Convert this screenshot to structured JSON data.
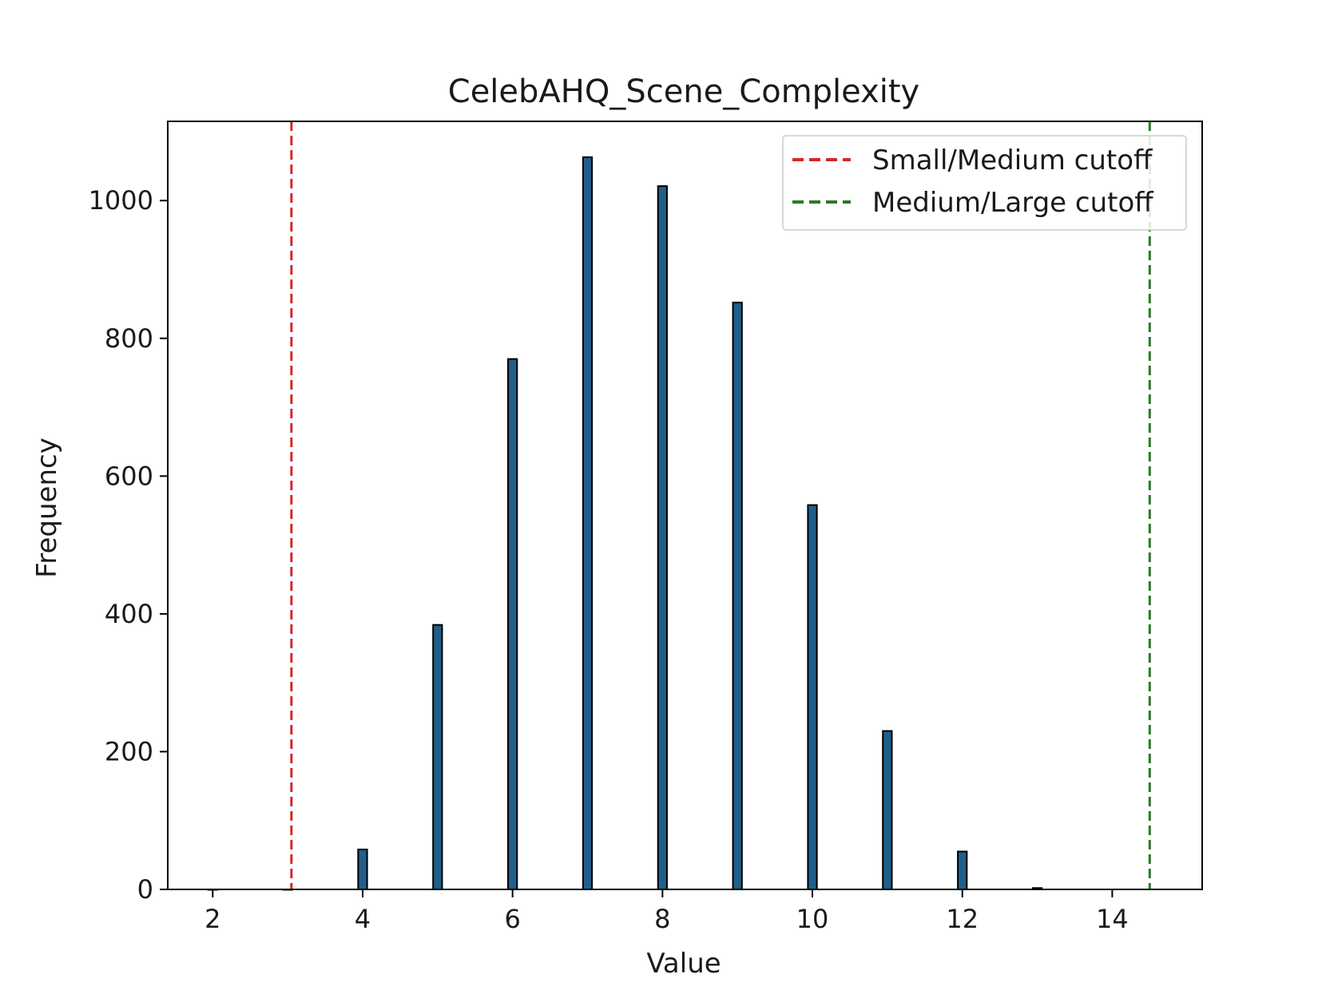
{
  "chart_data": {
    "type": "bar",
    "title": "CelebAHQ_Scene_Complexity",
    "xlabel": "Value",
    "ylabel": "Frequency",
    "xlim": [
      1.4,
      15.2
    ],
    "ylim": [
      0,
      1115
    ],
    "xticks": [
      2,
      4,
      6,
      8,
      10,
      12,
      14
    ],
    "yticks": [
      0,
      200,
      400,
      600,
      800,
      1000
    ],
    "bar_width": 0.12,
    "bar_color": "#1f5f8b",
    "bars": [
      {
        "x": 2,
        "value": 0
      },
      {
        "x": 3,
        "value": 0
      },
      {
        "x": 4,
        "value": 58
      },
      {
        "x": 5,
        "value": 384
      },
      {
        "x": 6,
        "value": 770
      },
      {
        "x": 7,
        "value": 1063
      },
      {
        "x": 8,
        "value": 1021
      },
      {
        "x": 9,
        "value": 852
      },
      {
        "x": 10,
        "value": 558
      },
      {
        "x": 11,
        "value": 230
      },
      {
        "x": 12,
        "value": 55
      },
      {
        "x": 13,
        "value": 2
      }
    ],
    "cutoffs": [
      {
        "name": "Small/Medium cutoff",
        "x": 3.05,
        "color": "#d62728"
      },
      {
        "name": "Medium/Large cutoff",
        "x": 14.5,
        "color": "#2a7a2a"
      }
    ],
    "legend_position": "top-right",
    "grid": false
  }
}
